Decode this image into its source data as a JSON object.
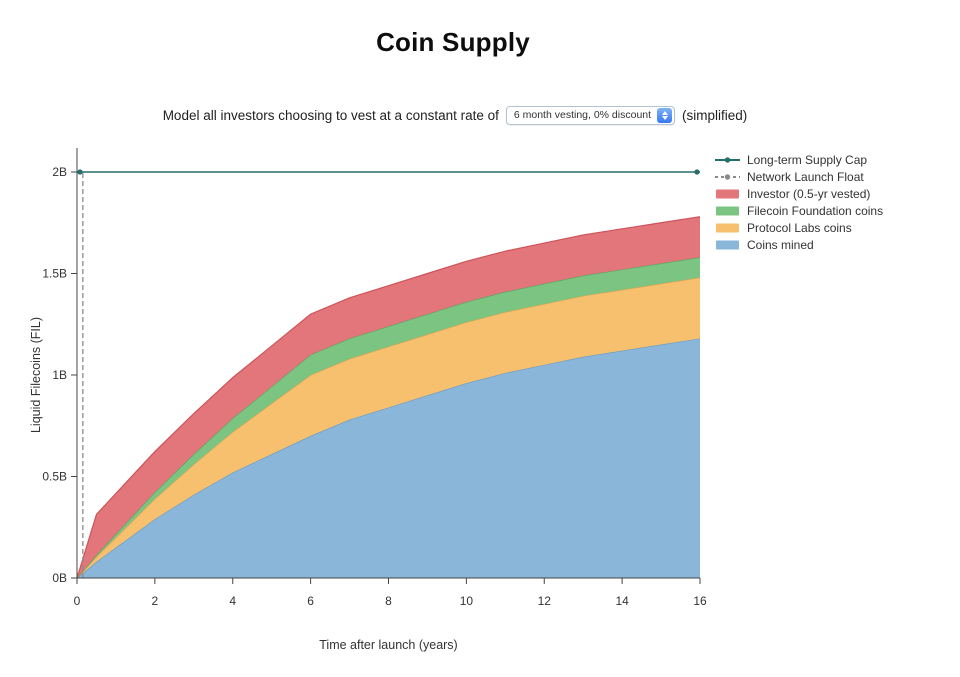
{
  "page": {
    "title": "Coin Supply",
    "subtitle_prefix": "Model all investors choosing to vest at a constant rate of",
    "subtitle_suffix": "(simplified)",
    "dropdown_value": "6 month vesting, 0% discount"
  },
  "chart_data": {
    "type": "area",
    "title": "Coin Supply",
    "xlabel": "Time after launch (years)",
    "ylabel": "Liquid Filecoins (FIL)",
    "xlim": [
      0,
      16
    ],
    "ylim": [
      0,
      2.15
    ],
    "units": "billions of FIL",
    "grid": false,
    "legend_position": "top-right",
    "x_ticks": [
      0,
      2,
      4,
      6,
      8,
      10,
      12,
      14,
      16
    ],
    "y_ticks": [
      {
        "value": 0,
        "label": "0B"
      },
      {
        "value": 0.5,
        "label": "0.5B"
      },
      {
        "value": 1,
        "label": "1B"
      },
      {
        "value": 1.5,
        "label": "1.5B"
      },
      {
        "value": 2,
        "label": "2B"
      }
    ],
    "x": [
      0,
      0.25,
      0.5,
      1,
      1.5,
      2,
      3,
      4,
      5,
      6,
      7,
      8,
      9,
      10,
      11,
      12,
      13,
      14,
      15,
      16
    ],
    "series": [
      {
        "name": "Coins mined",
        "color": "#8ab6d9",
        "edge": "#6699c4",
        "values": [
          0,
          0.04,
          0.08,
          0.15,
          0.22,
          0.29,
          0.41,
          0.52,
          0.61,
          0.7,
          0.78,
          0.84,
          0.9,
          0.96,
          1.01,
          1.05,
          1.09,
          1.12,
          1.15,
          1.18
        ]
      },
      {
        "name": "Protocol Labs coins",
        "color": "#f7c06e",
        "edge": "#e0a14e",
        "values": [
          0,
          0.0125,
          0.025,
          0.05,
          0.075,
          0.1,
          0.15,
          0.2,
          0.25,
          0.3,
          0.3,
          0.3,
          0.3,
          0.3,
          0.3,
          0.3,
          0.3,
          0.3,
          0.3,
          0.3
        ]
      },
      {
        "name": "Filecoin Foundation coins",
        "color": "#7cc482",
        "edge": "#58a661",
        "values": [
          0,
          0.004,
          0.008,
          0.017,
          0.025,
          0.033,
          0.05,
          0.067,
          0.083,
          0.1,
          0.1,
          0.1,
          0.1,
          0.1,
          0.1,
          0.1,
          0.1,
          0.1,
          0.1,
          0.1
        ]
      },
      {
        "name": "Investor (0.5-yr vested)",
        "color": "#e2767b",
        "edge": "#cd5459",
        "values": [
          0,
          0.1,
          0.2,
          0.2,
          0.2,
          0.2,
          0.2,
          0.2,
          0.2,
          0.2,
          0.2,
          0.2,
          0.2,
          0.2,
          0.2,
          0.2,
          0.2,
          0.2,
          0.2,
          0.2
        ]
      }
    ],
    "reference_lines": [
      {
        "name": "Long-term Supply Cap",
        "type": "hline",
        "value": 2.0,
        "color": "#256e6b",
        "style": "solid"
      },
      {
        "name": "Network Launch Float",
        "type": "vline",
        "value": 0.15,
        "color": "#8a8a8a",
        "style": "dashed"
      }
    ],
    "legend": [
      {
        "label": "Long-term Supply Cap",
        "swatch": "line-dot",
        "color": "#256e6b"
      },
      {
        "label": "Network Launch Float",
        "swatch": "dash-dot",
        "color": "#8a8a8a"
      },
      {
        "label": "Investor (0.5-yr vested)",
        "swatch": "rect",
        "color": "#e2767b"
      },
      {
        "label": "Filecoin Foundation coins",
        "swatch": "rect",
        "color": "#7cc482"
      },
      {
        "label": "Protocol Labs coins",
        "swatch": "rect",
        "color": "#f7c06e"
      },
      {
        "label": "Coins mined",
        "swatch": "rect",
        "color": "#8ab6d9"
      }
    ]
  }
}
